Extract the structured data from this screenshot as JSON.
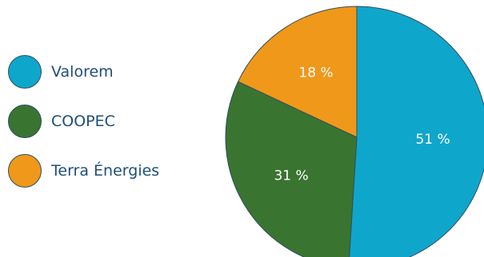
{
  "chart_data": {
    "type": "pie",
    "title": "",
    "legend_position": "left",
    "categories": [
      "Valorem",
      "COOPEC",
      "Terra Énergies"
    ],
    "values": [
      51,
      31,
      18
    ],
    "labels": [
      "51 %",
      "31 %",
      "18 %"
    ],
    "colors": [
      "#0fa6cc",
      "#3a7431",
      "#f0981a"
    ]
  }
}
